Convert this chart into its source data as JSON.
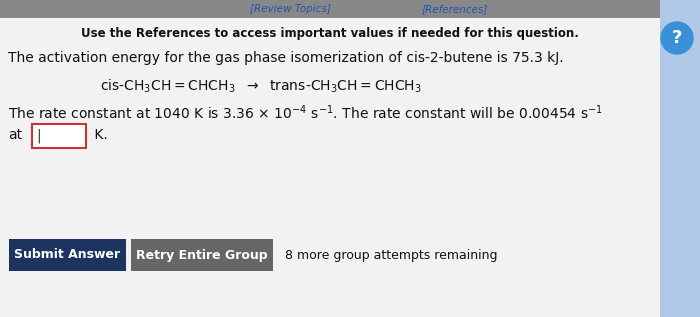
{
  "bg_color": "#e8e8e8",
  "header_text": "Use the References to access important values if needed for this question.",
  "line1": "The activation energy for the gas phase isomerization of cis-2-butene is 75.3 kJ.",
  "equation": "cis-CH₃CH=CHCH₃  →  trans-CH₃CH=CHCH₃",
  "line3_full": "The rate constant at 1040 K is 3.36 × 10⁻⁴ s⁻¹. The rate constant will be 0.00454 s⁻¹",
  "line4_pre": "at",
  "line4_post": " K.",
  "btn1_text": "Submit Answer",
  "btn1_color": "#1d3461",
  "btn2_text": "Retry Entire Group",
  "btn2_color": "#666666",
  "remaining_text": "8 more group attempts remaining",
  "link_color": "#2255aa",
  "text_color": "#111111",
  "right_circle_color": "#3a8fd9",
  "right_panel_color": "#3a8fd9"
}
